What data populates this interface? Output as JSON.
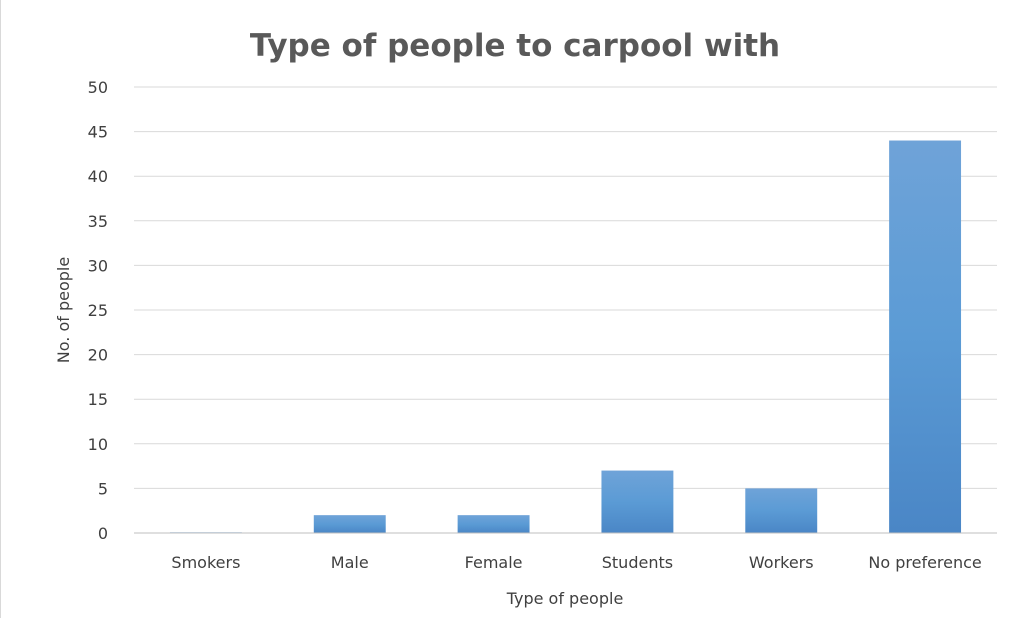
{
  "chart_data": {
    "type": "bar",
    "title": "Type of people to carpool with",
    "xlabel": "Type of people",
    "ylabel": "No. of people",
    "categories": [
      "Smokers",
      "Male",
      "Female",
      "Students",
      "Workers",
      "No preference"
    ],
    "values": [
      0,
      2,
      2,
      7,
      5,
      44
    ],
    "ylim": [
      0,
      50
    ],
    "yticks": [
      0,
      5,
      10,
      15,
      20,
      25,
      30,
      35,
      40,
      45,
      50
    ],
    "grid": true,
    "legend": "none",
    "colors": {
      "bar_top": "#6fa3d8",
      "bar_mid": "#5b9bd5",
      "bar_bottom": "#4a86c6",
      "grid": "#d9d9d9",
      "text": "#404040",
      "title": "#595959"
    }
  }
}
